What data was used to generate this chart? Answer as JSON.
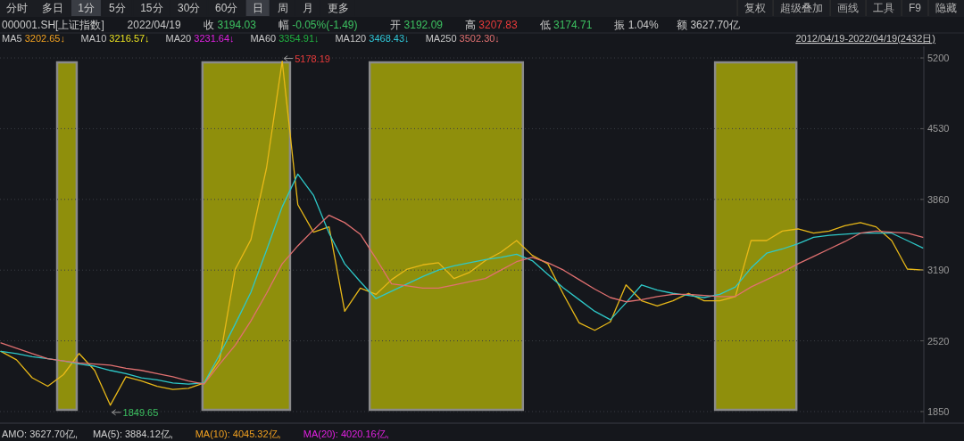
{
  "chart_data": {
    "type": "line",
    "categories": [
      null,
      null,
      null,
      null,
      null,
      null,
      null,
      null,
      null,
      null,
      null,
      null,
      null,
      null,
      null,
      null,
      null,
      null,
      null,
      null,
      null,
      null,
      null,
      null,
      null,
      null,
      null,
      null,
      null,
      null,
      null,
      null,
      null,
      null,
      null,
      null,
      null,
      null,
      null,
      null,
      null,
      null,
      null,
      null,
      null,
      null,
      null,
      null,
      null,
      null,
      null,
      null,
      null,
      null,
      null,
      null,
      null,
      null,
      null,
      null
    ],
    "ylim": [
      1740,
      5310
    ],
    "yticks": [
      1850,
      2520,
      3190,
      3860,
      4530,
      5200
    ],
    "grid": "y",
    "tick_labels": "y",
    "series": [
      {
        "color": "#e8b818",
        "values": [
          2420,
          2340,
          2170,
          2090,
          2200,
          2400,
          2240,
          1910,
          2180,
          2140,
          2090,
          2060,
          2070,
          2120,
          2340,
          3200,
          3480,
          4160,
          5170,
          3810,
          3550,
          3600,
          2800,
          3020,
          2960,
          3100,
          3200,
          3240,
          3260,
          3110,
          3170,
          3280,
          3360,
          3470,
          3330,
          3250,
          2960,
          2690,
          2620,
          2700,
          3050,
          2900,
          2850,
          2900,
          2970,
          2900,
          2900,
          2940,
          3470,
          3470,
          3560,
          3580,
          3540,
          3560,
          3610,
          3640,
          3600,
          3470,
          3200,
          3190
        ]
      },
      {
        "color": "#2ec8c8",
        "values": [
          2420,
          2400,
          2370,
          2350,
          2330,
          2300,
          2280,
          2240,
          2210,
          2170,
          2150,
          2120,
          2110,
          2120,
          2390,
          2680,
          2980,
          3380,
          3790,
          4100,
          3900,
          3540,
          3250,
          3080,
          2920,
          2990,
          3060,
          3130,
          3190,
          3230,
          3260,
          3290,
          3310,
          3340,
          3280,
          3150,
          3020,
          2910,
          2800,
          2720,
          2880,
          3050,
          3000,
          2970,
          2950,
          2930,
          2960,
          3030,
          3210,
          3350,
          3390,
          3440,
          3500,
          3520,
          3530,
          3540,
          3540,
          3540,
          3470,
          3400
        ]
      },
      {
        "color": "#e07070",
        "values": [
          2500,
          2450,
          2400,
          2350,
          2330,
          2310,
          2300,
          2290,
          2260,
          2240,
          2210,
          2180,
          2140,
          2110,
          2300,
          2480,
          2710,
          2970,
          3250,
          3420,
          3570,
          3710,
          3640,
          3530,
          3300,
          3060,
          3040,
          3020,
          3020,
          3050,
          3080,
          3110,
          3190,
          3270,
          3310,
          3260,
          3190,
          3100,
          3010,
          2930,
          2890,
          2910,
          2940,
          2960,
          2960,
          2950,
          2940,
          2940,
          3030,
          3100,
          3170,
          3250,
          3320,
          3390,
          3460,
          3540,
          3560,
          3550,
          3540,
          3500
        ]
      }
    ],
    "annotations": [
      "分时",
      "多日",
      "1分",
      "5分",
      "15分",
      "30分",
      "60分",
      "日",
      "周",
      "月",
      "更多",
      "复权",
      "超级叠加",
      "画线",
      "工具",
      "F9",
      "隐藏",
      "000001.SH[上证指数]",
      "2022/04/19",
      "收 3194.03",
      "幅 -0.05%(-1.49)",
      "开 3192.09",
      "高 3207.83",
      "低 3174.71",
      "振 1.04%",
      "额 3627.70亿",
      "MA5 3202.65↓",
      "MA10 3216.57↓",
      "MA20 3231.64↓",
      "MA60 3354.91↓",
      "MA120 3468.43↓",
      "MA250 3502.30↓",
      "2012/04/19-2022/04/19(2432日)",
      "AMO: 3627.70亿,",
      "MA(5): 3884.12亿,",
      "MA(10): 4045.32亿,",
      "MA(20): 4020.16亿,",
      "5178.19",
      "1849.65"
    ]
  }
}
